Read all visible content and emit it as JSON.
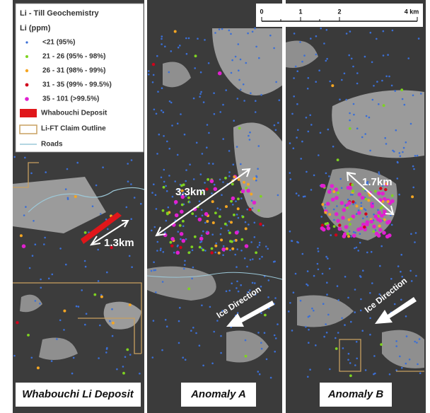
{
  "legend": {
    "title": "Li - Till Geochemistry",
    "subtitle": "Li (ppm)",
    "items": [
      "<21 (95%)",
      "21 - 26 (95% - 98%)",
      "26 - 31 (98% - 99%)",
      "31 - 35 (99% - 99.5%)",
      "35 - 101 (>99.5%)",
      "Whabouchi Deposit",
      "Li-FT Claim Outline",
      "Roads"
    ]
  },
  "scale_bar": {
    "labels": [
      "0",
      "1",
      "2",
      "4 km"
    ]
  },
  "annotations": {
    "deposit_length": "1.3km",
    "anomaly_a_length": "3.3km",
    "anomaly_b_length": "1.7km",
    "ice_direction_a": "Ice Direction",
    "ice_direction_b": "Ice Direction"
  },
  "panels": [
    "Whabouchi Li Deposit",
    "Anomaly A",
    "Anomaly B"
  ]
}
